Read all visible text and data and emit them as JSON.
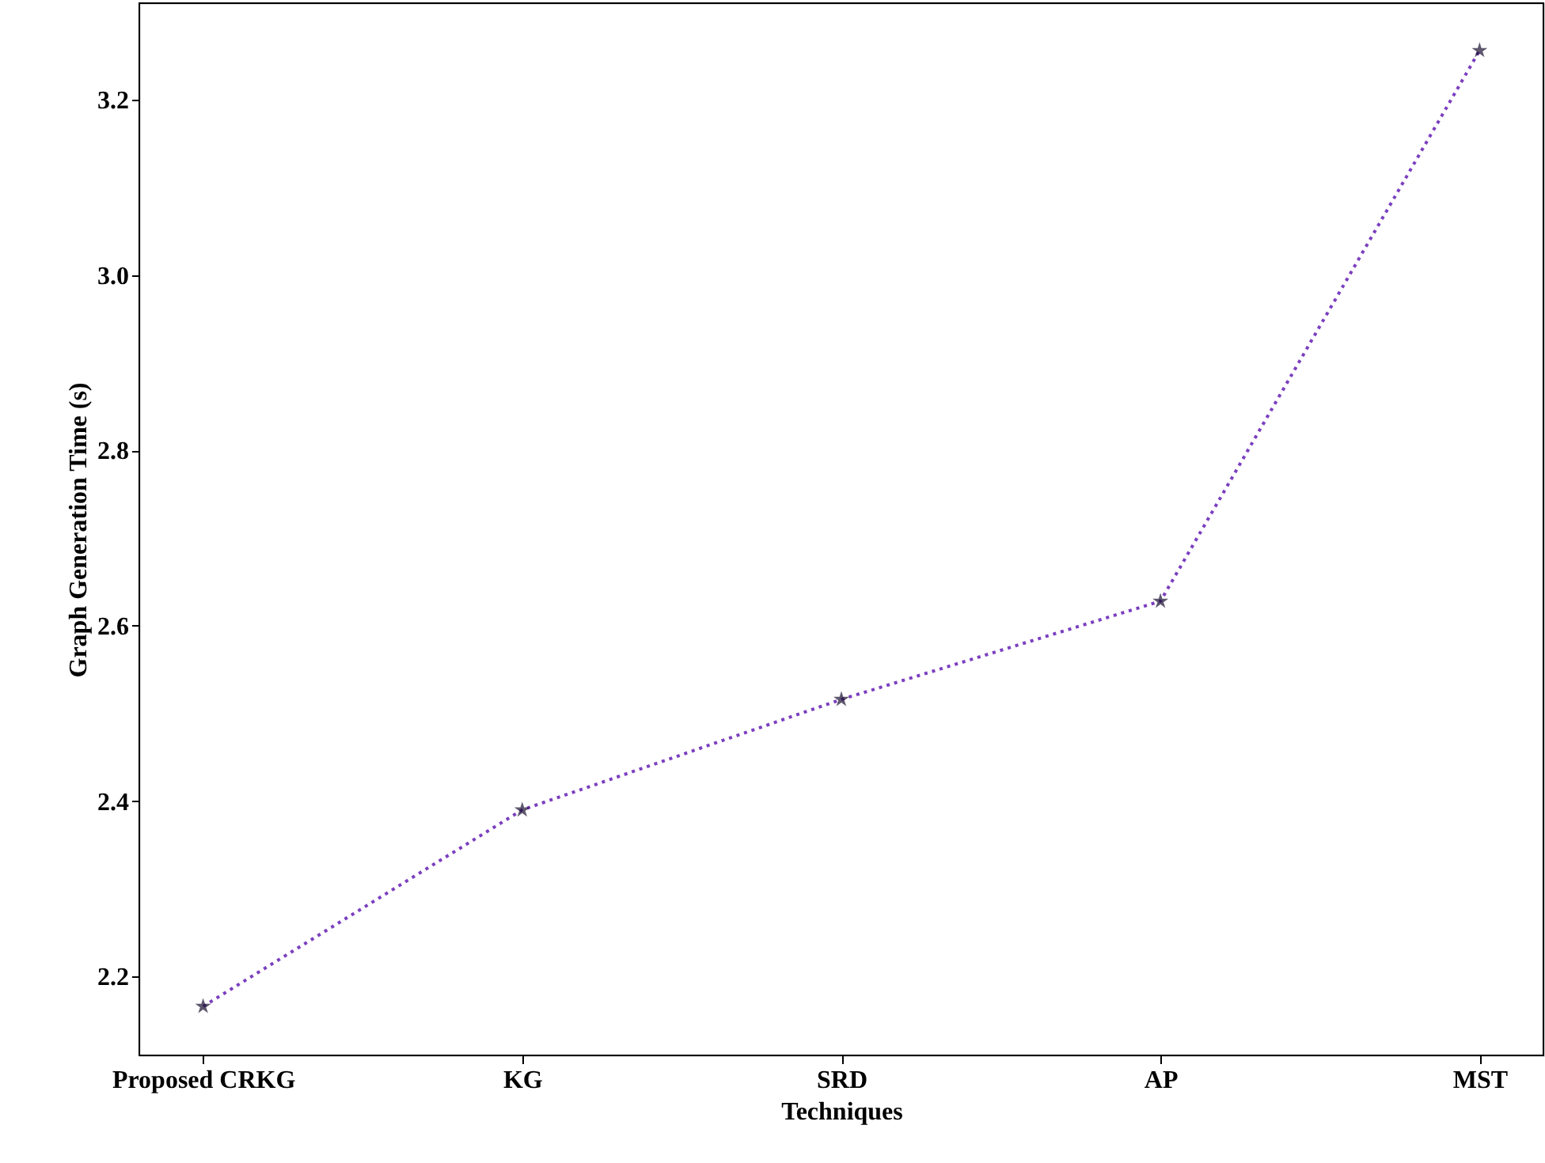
{
  "chart_data": {
    "type": "line",
    "xlabel": "Techniques",
    "ylabel": "Graph Generation Time (s)",
    "categories": [
      "Proposed CRKG",
      "KG",
      "SRD",
      "AP",
      "MST"
    ],
    "series": [
      {
        "color": "#7b3fbf",
        "values": [
          2.166,
          2.39,
          2.516,
          2.628,
          3.256
        ]
      }
    ],
    "ylim": [
      2.11,
      3.31
    ],
    "yticks": [
      2.2,
      2.4,
      2.6,
      2.8,
      {
        "value": 3,
        "label": "3.0"
      },
      3.2
    ],
    "grid": false,
    "marker": "star",
    "line_style": "dotted"
  }
}
